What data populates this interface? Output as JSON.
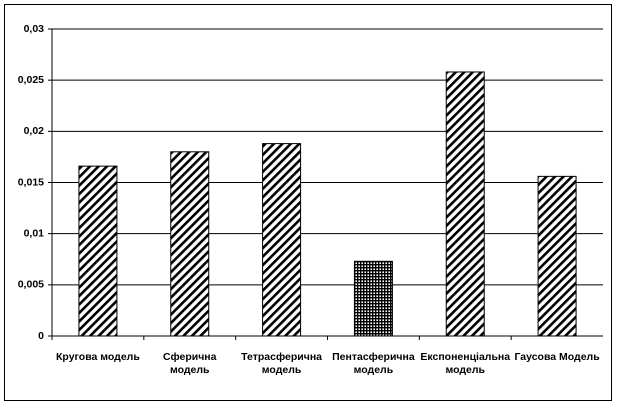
{
  "chart_data": {
    "type": "bar",
    "categories": [
      "Кругова модель",
      "Сферична\nмодель",
      "Тетрасферична\nмодель",
      "Пентасферична\nмодель",
      "Експоненціальна\nмодель",
      "Гаусова Модель"
    ],
    "values": [
      0.0166,
      0.018,
      0.0188,
      0.0073,
      0.0258,
      0.0156
    ],
    "bar_patterns": [
      "diagonal",
      "diagonal",
      "diagonal",
      "crosshatch",
      "diagonal",
      "diagonal"
    ],
    "color": "#000000",
    "ylim": [
      0,
      0.03
    ],
    "yticks": [
      0,
      {
        "value": 0.005,
        "label": "0,005"
      },
      {
        "value": 0.01,
        "label": "0,01"
      },
      {
        "value": 0.015,
        "label": "0,015"
      },
      {
        "value": 0.02,
        "label": "0,02"
      },
      {
        "value": 0.025,
        "label": "0,025"
      },
      {
        "value": 0.03,
        "label": "0,03"
      }
    ],
    "grid": true
  }
}
